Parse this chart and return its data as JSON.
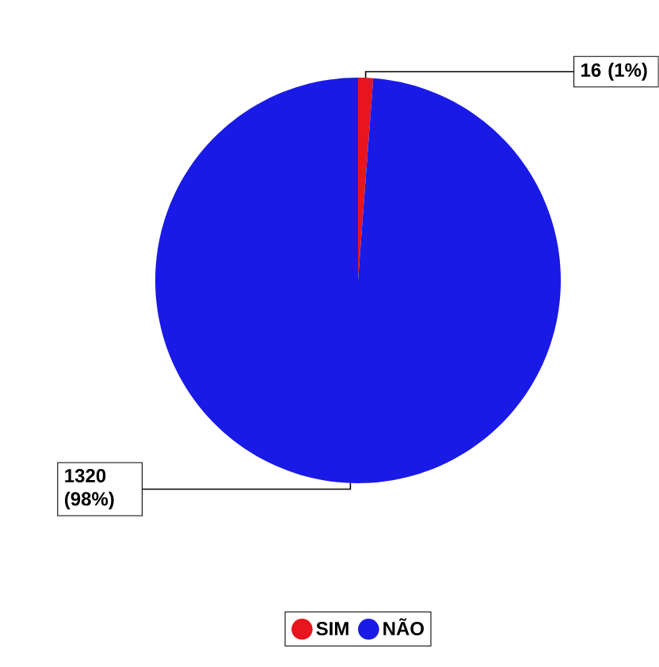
{
  "chart_data": {
    "type": "pie",
    "categories": [
      "SIM",
      "NÃO"
    ],
    "values": [
      16,
      1320
    ],
    "colors": [
      "#e8141e",
      "#1a1ae6"
    ],
    "value_labels": [
      "16 (1%)",
      "1320 (98%)"
    ],
    "legend": "bottom"
  }
}
